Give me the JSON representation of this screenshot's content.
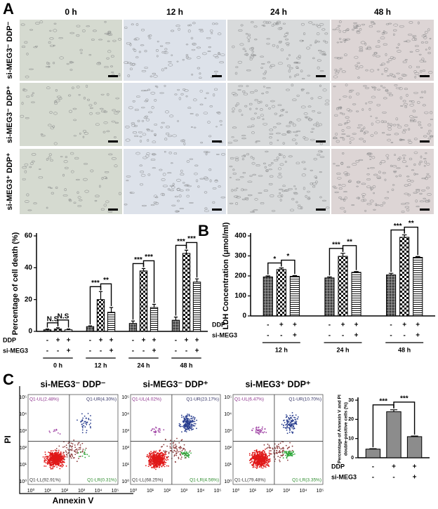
{
  "panel_A": {
    "label": "A",
    "columns": [
      "0 h",
      "12 h",
      "24 h",
      "48 h"
    ],
    "rows": [
      "si-MEG3⁻ DDP⁻",
      "si-MEG3⁻ DDP⁺",
      "si-MEG3⁺ DDP⁺"
    ]
  },
  "panel_B": {
    "label": "B"
  },
  "panel_C": {
    "label": "C"
  },
  "chart_data": [
    {
      "type": "bar",
      "y_label": "Percentage of cell death (%)",
      "categories": [
        "0 h",
        "12 h",
        "24 h",
        "48 h"
      ],
      "series": [
        {
          "fill": "crosshatch",
          "values": [
            1,
            3,
            5,
            7
          ],
          "errors": [
            0.5,
            0.5,
            1.5,
            2
          ]
        },
        {
          "fill": "checker",
          "values": [
            1.5,
            20,
            38,
            49
          ],
          "errors": [
            0.8,
            5,
            1.5,
            2
          ]
        },
        {
          "fill": "stripes",
          "values": [
            1,
            12,
            15,
            31
          ],
          "errors": [
            0.5,
            3,
            2,
            2
          ]
        }
      ],
      "significance": [
        [
          "N.S",
          "N.S"
        ],
        [
          "***",
          "**"
        ],
        [
          "***",
          "***"
        ],
        [
          "***",
          "***"
        ]
      ],
      "conditions": [
        {
          "label": "DDP",
          "signs": [
            "-",
            "+",
            "+"
          ]
        },
        {
          "label": "si-MEG3",
          "signs": [
            "-",
            "-",
            "+"
          ]
        }
      ],
      "ylim": [
        0,
        60
      ],
      "yticks": [
        0,
        20,
        40,
        60
      ]
    },
    {
      "type": "bar",
      "y_label": "LDH Concentration (μmol/ml)",
      "categories": [
        "12 h",
        "24 h",
        "48 h"
      ],
      "series": [
        {
          "fill": "crosshatch",
          "values": [
            195,
            190,
            205
          ],
          "errors": [
            5,
            5,
            8
          ]
        },
        {
          "fill": "checker",
          "values": [
            232,
            298,
            393
          ],
          "errors": [
            8,
            15,
            12
          ]
        },
        {
          "fill": "stripes",
          "values": [
            198,
            218,
            293
          ],
          "errors": [
            4,
            4,
            4
          ]
        }
      ],
      "significance": [
        [
          "*",
          "*"
        ],
        [
          "***",
          "**"
        ],
        [
          "***",
          "**"
        ]
      ],
      "conditions": [
        {
          "label": "DDP",
          "signs": [
            "-",
            "+",
            "+"
          ]
        },
        {
          "label": "si-MEG3",
          "signs": [
            "-",
            "-",
            "+"
          ]
        }
      ],
      "ylim": [
        0,
        400
      ],
      "yticks": [
        0,
        100,
        200,
        300,
        400
      ]
    },
    {
      "type": "bar",
      "y_label": [
        "Percentage of Annexin V and PI",
        "double-positive cells (%)"
      ],
      "fill": "#8c8c8c",
      "values": [
        4.5,
        24,
        11
      ],
      "errors": [
        0.2,
        1,
        0.3
      ],
      "significance": [
        "***",
        "***"
      ],
      "conditions": [
        {
          "label": "DDP",
          "signs": [
            "-",
            "+",
            "+"
          ]
        },
        {
          "label": "si-MEG3",
          "signs": [
            "-",
            "-",
            "+"
          ]
        }
      ],
      "ylim": [
        0,
        30
      ],
      "yticks": [
        0,
        10,
        20,
        30
      ]
    }
  ],
  "flow_cytometry": {
    "x_label": "Annexin V",
    "y_label": "PI",
    "x_ticks": [
      "10⁰",
      "10¹",
      "10²",
      "10³",
      "10⁴",
      "10⁵"
    ],
    "y_ticks": [
      "10⁰",
      "10¹",
      "10²",
      "10³",
      "10⁴",
      "10⁵"
    ],
    "plots": [
      {
        "title": "si-MEG3⁻ DDP⁻",
        "quadrants": [
          "Q1-UL(2.48%)",
          "Q1-UR(4.30%)",
          "Q1-LL(92.91%)",
          "Q1-LR(0.31%)"
        ]
      },
      {
        "title": "si-MEG3⁻ DDP⁺",
        "quadrants": [
          "Q1-UL(4.02%)",
          "Q1-UR(23.17%)",
          "Q1-LL(68.25%)",
          "Q1-LR(4.56%)"
        ]
      },
      {
        "title": "si-MEG3⁺ DDP⁺",
        "quadrants": [
          "Q1-UL(6.47%)",
          "Q1-UR(10.70%)",
          "Q1-LL(79.48%)",
          "Q1-LR(3.35%)"
        ]
      }
    ]
  }
}
